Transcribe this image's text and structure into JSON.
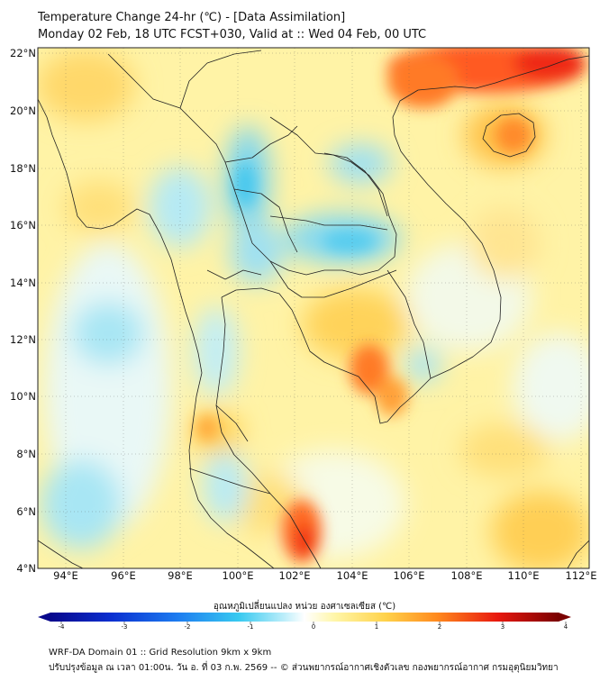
{
  "title": {
    "line1": "Temperature Change 24-hr (℃) - [Data Assimilation]",
    "line2": "Monday 02 Feb, 18 UTC FCST+030, Valid at :: Wed 04 Feb, 00 UTC"
  },
  "map": {
    "lat_labels": [
      "22°N",
      "20°N",
      "18°N",
      "16°N",
      "14°N",
      "12°N",
      "10°N",
      "8°N",
      "6°N",
      "4°N"
    ],
    "lon_labels": [
      "94°E",
      "96°E",
      "98°E",
      "100°E",
      "102°E",
      "104°E",
      "106°E",
      "108°E",
      "110°E",
      "112°E"
    ],
    "lat_range": [
      4,
      22
    ],
    "lon_range": [
      93,
      112.2
    ]
  },
  "colorbar": {
    "label": "อุณหภูมิเปลี่ยนแปลง หน่วย องศาเซลเซียส (℃)",
    "ticks": [
      "-4",
      "-3",
      "-2",
      "-1",
      "0",
      "1",
      "2",
      "3",
      "4"
    ],
    "min": -4,
    "max": 4,
    "colors": [
      "#08088c",
      "#0a2fd0",
      "#1d7cf0",
      "#37c9f0",
      "#bdeefa",
      "#ffffff",
      "#fff6a8",
      "#ffd24a",
      "#ff8a1e",
      "#e8180e",
      "#7a0000"
    ]
  },
  "footer": {
    "line1": "WRF-DA Domain 01 :: Grid Resolution 9km x 9km",
    "line2": "ปรับปรุงข้อมูล ณ เวลา 01:00น. วัน อ. ที่ 03 ก.พ. 2569 -- © ส่วนพยากรณ์อากาศเชิงตัวเลข กองพยากรณ์อากาศ กรมอุตุนิยมวิทยา"
  }
}
